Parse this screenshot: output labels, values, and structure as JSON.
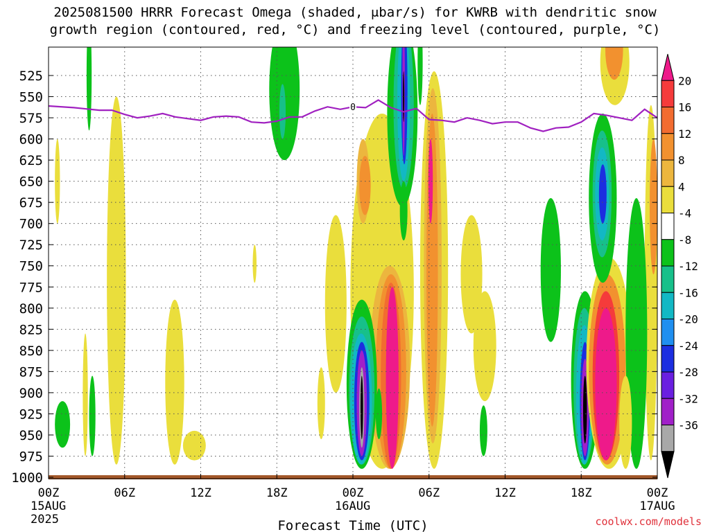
{
  "title": {
    "line1": "2025081500 HRRR Forecast Omega (shaded, μbar/s) for KWRB with dendritic snow",
    "line2": "growth region (contoured, red, °C) and freezing level (contoured, purple, °C)"
  },
  "credit": "coolwx.com/models",
  "chart_data": {
    "type": "heatmap",
    "xlabel": "Forecast Time (UTC)",
    "ylabel": "",
    "x_range_hours": [
      0,
      48
    ],
    "y_range_mb": [
      1000,
      500
    ],
    "x_ticks": [
      {
        "h": 0,
        "lines": [
          "00Z",
          "15AUG",
          "2025"
        ]
      },
      {
        "h": 6,
        "lines": [
          "06Z"
        ]
      },
      {
        "h": 12,
        "lines": [
          "12Z"
        ]
      },
      {
        "h": 18,
        "lines": [
          "18Z"
        ]
      },
      {
        "h": 24,
        "lines": [
          "00Z",
          "16AUG"
        ]
      },
      {
        "h": 30,
        "lines": [
          "06Z"
        ]
      },
      {
        "h": 36,
        "lines": [
          "12Z"
        ]
      },
      {
        "h": 42,
        "lines": [
          "18Z"
        ]
      },
      {
        "h": 48,
        "lines": [
          "00Z",
          "17AUG"
        ]
      }
    ],
    "y_ticks": [
      525,
      550,
      575,
      600,
      625,
      650,
      675,
      700,
      725,
      750,
      775,
      800,
      825,
      850,
      875,
      900,
      925,
      950,
      975,
      1000
    ],
    "freezing_level": {
      "color": "#a020c0",
      "label": "0",
      "label_at_hour": 24,
      "points": [
        [
          0,
          561
        ],
        [
          2,
          563
        ],
        [
          4,
          566
        ],
        [
          5,
          566
        ],
        [
          6,
          571
        ],
        [
          7,
          575
        ],
        [
          8,
          573
        ],
        [
          9,
          570
        ],
        [
          10,
          574
        ],
        [
          11,
          576
        ],
        [
          12,
          578
        ],
        [
          13,
          574
        ],
        [
          14,
          573
        ],
        [
          15,
          574
        ],
        [
          16,
          580
        ],
        [
          17,
          581
        ],
        [
          18,
          579
        ],
        [
          19,
          574
        ],
        [
          20,
          574
        ],
        [
          21,
          567
        ],
        [
          22,
          562
        ],
        [
          23,
          565
        ],
        [
          24,
          562
        ],
        [
          25,
          563
        ],
        [
          26,
          554
        ],
        [
          27,
          563
        ],
        [
          28,
          568
        ],
        [
          29,
          564
        ],
        [
          30,
          577
        ],
        [
          31,
          578
        ],
        [
          32,
          580
        ],
        [
          33,
          575
        ],
        [
          34,
          578
        ],
        [
          35,
          582
        ],
        [
          36,
          580
        ],
        [
          37,
          580
        ],
        [
          38,
          587
        ],
        [
          39,
          591
        ],
        [
          40,
          587
        ],
        [
          41,
          586
        ],
        [
          42,
          580
        ],
        [
          43,
          570
        ],
        [
          44,
          572
        ],
        [
          45,
          575
        ],
        [
          46,
          578
        ],
        [
          47,
          565
        ],
        [
          48,
          575
        ]
      ]
    },
    "colorbar": {
      "labels": [
        "20",
        "16",
        "12",
        "8",
        "4",
        "-4",
        "-8",
        "-12",
        "-16",
        "-20",
        "-24",
        "-28",
        "-32",
        "-36"
      ],
      "colors": [
        "#ee1a8a",
        "#f53b3b",
        "#f26c30",
        "#f2912f",
        "#ecb63e",
        "#eade3c",
        "#ffffff",
        "#0cc21a",
        "#17c08a",
        "#12b8c4",
        "#1f8ff0",
        "#1c2ee0",
        "#6a1fe0",
        "#a020c8",
        "#a8a8a8",
        "#000000"
      ]
    },
    "cells": [
      {
        "c": "#0cc21a",
        "h": [
          3.0,
          3.4
        ],
        "p": [
          500,
          590
        ]
      },
      {
        "c": "#0cc21a",
        "h": [
          0.5,
          1.7
        ],
        "p": [
          910,
          965
        ]
      },
      {
        "c": "#0cc21a",
        "h": [
          3.2,
          3.7
        ],
        "p": [
          880,
          975
        ]
      },
      {
        "c": "#0cc21a",
        "h": [
          17.4,
          19.8
        ],
        "p": [
          500,
          625
        ]
      },
      {
        "c": "#17c08a",
        "h": [
          18.2,
          18.7
        ],
        "p": [
          535,
          600
        ]
      },
      {
        "c": "#eade3c",
        "h": [
          4.6,
          6.1
        ],
        "p": [
          550,
          985
        ]
      },
      {
        "c": "#eade3c",
        "h": [
          0.5,
          0.9
        ],
        "p": [
          600,
          700
        ]
      },
      {
        "c": "#eade3c",
        "h": [
          2.7,
          3.1
        ],
        "p": [
          830,
          975
        ]
      },
      {
        "c": "#eade3c",
        "h": [
          9.2,
          10.7
        ],
        "p": [
          790,
          985
        ]
      },
      {
        "c": "#eade3c",
        "h": [
          10.6,
          12.4
        ],
        "p": [
          945,
          980
        ]
      },
      {
        "c": "#eade3c",
        "h": [
          16.1,
          16.4
        ],
        "p": [
          725,
          770
        ]
      },
      {
        "c": "#eade3c",
        "h": [
          21.8,
          23.5
        ],
        "p": [
          690,
          900
        ]
      },
      {
        "c": "#eade3c",
        "h": [
          21.2,
          21.8
        ],
        "p": [
          870,
          955
        ]
      },
      {
        "c": "#eade3c",
        "h": [
          23.8,
          28.8
        ],
        "p": [
          570,
          990
        ]
      },
      {
        "c": "#ecb63e",
        "h": [
          24.3,
          25.3
        ],
        "p": [
          600,
          700
        ]
      },
      {
        "c": "#f2912f",
        "h": [
          24.5,
          25.4
        ],
        "p": [
          620,
          690
        ]
      },
      {
        "c": "#ecb63e",
        "h": [
          25.3,
          28.5
        ],
        "p": [
          750,
          990
        ]
      },
      {
        "c": "#f2912f",
        "h": [
          25.8,
          28.2
        ],
        "p": [
          760,
          990
        ]
      },
      {
        "c": "#f26c30",
        "h": [
          26.2,
          27.8
        ],
        "p": [
          770,
          990
        ]
      },
      {
        "c": "#ee1a8a",
        "h": [
          26.6,
          27.6
        ],
        "p": [
          775,
          990
        ]
      },
      {
        "c": "#0cc21a",
        "h": [
          26.7,
          29.1
        ],
        "p": [
          500,
          680
        ]
      },
      {
        "c": "#17c08a",
        "h": [
          27.2,
          28.8
        ],
        "p": [
          500,
          660
        ]
      },
      {
        "c": "#12b8c4",
        "h": [
          27.5,
          28.5
        ],
        "p": [
          500,
          650
        ]
      },
      {
        "c": "#1c2ee0",
        "h": [
          27.8,
          28.3
        ],
        "p": [
          500,
          630
        ]
      },
      {
        "c": "#a020c8",
        "h": [
          27.9,
          28.1
        ],
        "p": [
          500,
          620
        ]
      },
      {
        "c": "#000000",
        "h": [
          27.95,
          28.05
        ],
        "p": [
          520,
          580
        ]
      },
      {
        "c": "#0cc21a",
        "h": [
          27.7,
          28.3
        ],
        "p": [
          650,
          720
        ]
      },
      {
        "c": "#eade3c",
        "h": [
          29.3,
          31.5
        ],
        "p": [
          520,
          990
        ]
      },
      {
        "c": "#ecb63e",
        "h": [
          29.6,
          31.0
        ],
        "p": [
          540,
          960
        ]
      },
      {
        "c": "#f2912f",
        "h": [
          29.8,
          30.7
        ],
        "p": [
          570,
          940
        ]
      },
      {
        "c": "#ee1a8a",
        "h": [
          29.95,
          30.3
        ],
        "p": [
          600,
          700
        ]
      },
      {
        "c": "#0cc21a",
        "h": [
          29.1,
          29.5
        ],
        "p": [
          500,
          560
        ]
      },
      {
        "c": "#eade3c",
        "h": [
          32.5,
          34.2
        ],
        "p": [
          690,
          830
        ]
      },
      {
        "c": "#eade3c",
        "h": [
          33.5,
          35.3
        ],
        "p": [
          780,
          910
        ]
      },
      {
        "c": "#0cc21a",
        "h": [
          23.5,
          25.9
        ],
        "p": [
          790,
          990
        ]
      },
      {
        "c": "#17c08a",
        "h": [
          23.7,
          25.7
        ],
        "p": [
          810,
          985
        ]
      },
      {
        "c": "#12b8c4",
        "h": [
          23.8,
          25.5
        ],
        "p": [
          830,
          985
        ]
      },
      {
        "c": "#1c2ee0",
        "h": [
          24.1,
          25.3
        ],
        "p": [
          840,
          980
        ]
      },
      {
        "c": "#a020c8",
        "h": [
          24.3,
          25.1
        ],
        "p": [
          850,
          975
        ]
      },
      {
        "c": "#a8a8a8",
        "h": [
          24.5,
          24.9
        ],
        "p": [
          870,
          965
        ]
      },
      {
        "c": "#000000",
        "h": [
          24.6,
          24.8
        ],
        "p": [
          880,
          955
        ]
      },
      {
        "c": "#0cc21a",
        "h": [
          25.8,
          26.3
        ],
        "p": [
          895,
          955
        ]
      },
      {
        "c": "#0cc21a",
        "h": [
          34.0,
          34.6
        ],
        "p": [
          915,
          975
        ]
      },
      {
        "c": "#0cc21a",
        "h": [
          38.8,
          40.4
        ],
        "p": [
          670,
          840
        ]
      },
      {
        "c": "#0cc21a",
        "h": [
          41.2,
          43.4
        ],
        "p": [
          780,
          990
        ]
      },
      {
        "c": "#17c08a",
        "h": [
          41.4,
          43.1
        ],
        "p": [
          800,
          985
        ]
      },
      {
        "c": "#12b8c4",
        "h": [
          41.6,
          42.9
        ],
        "p": [
          820,
          985
        ]
      },
      {
        "c": "#1c2ee0",
        "h": [
          41.9,
          42.7
        ],
        "p": [
          840,
          980
        ]
      },
      {
        "c": "#a020c8",
        "h": [
          42.0,
          42.6
        ],
        "p": [
          860,
          975
        ]
      },
      {
        "c": "#000000",
        "h": [
          42.15,
          42.45
        ],
        "p": [
          880,
          960
        ]
      },
      {
        "c": "#eade3c",
        "h": [
          42.4,
          46.0
        ],
        "p": [
          740,
          990
        ]
      },
      {
        "c": "#f2912f",
        "h": [
          42.6,
          45.5
        ],
        "p": [
          760,
          985
        ]
      },
      {
        "c": "#f53b3b",
        "h": [
          42.9,
          45.0
        ],
        "p": [
          780,
          980
        ]
      },
      {
        "c": "#ee1a8a",
        "h": [
          43.1,
          44.8
        ],
        "p": [
          800,
          980
        ]
      },
      {
        "c": "#0cc21a",
        "h": [
          42.6,
          44.8
        ],
        "p": [
          570,
          770
        ]
      },
      {
        "c": "#17c08a",
        "h": [
          42.9,
          44.4
        ],
        "p": [
          590,
          740
        ]
      },
      {
        "c": "#12b8c4",
        "h": [
          43.1,
          44.2
        ],
        "p": [
          610,
          720
        ]
      },
      {
        "c": "#1c2ee0",
        "h": [
          43.4,
          44.0
        ],
        "p": [
          630,
          700
        ]
      },
      {
        "c": "#eade3c",
        "h": [
          43.5,
          45.8
        ],
        "p": [
          500,
          560
        ]
      },
      {
        "c": "#f2912f",
        "h": [
          43.9,
          45.3
        ],
        "p": [
          500,
          530
        ]
      },
      {
        "c": "#eade3c",
        "h": [
          47.0,
          48.0
        ],
        "p": [
          560,
          980
        ]
      },
      {
        "c": "#f2912f",
        "h": [
          47.4,
          48.0
        ],
        "p": [
          600,
          760
        ]
      },
      {
        "c": "#0cc21a",
        "h": [
          45.5,
          47.2
        ],
        "p": [
          670,
          990
        ]
      },
      {
        "c": "#eade3c",
        "h": [
          45.0,
          46.0
        ],
        "p": [
          880,
          990
        ]
      }
    ]
  }
}
